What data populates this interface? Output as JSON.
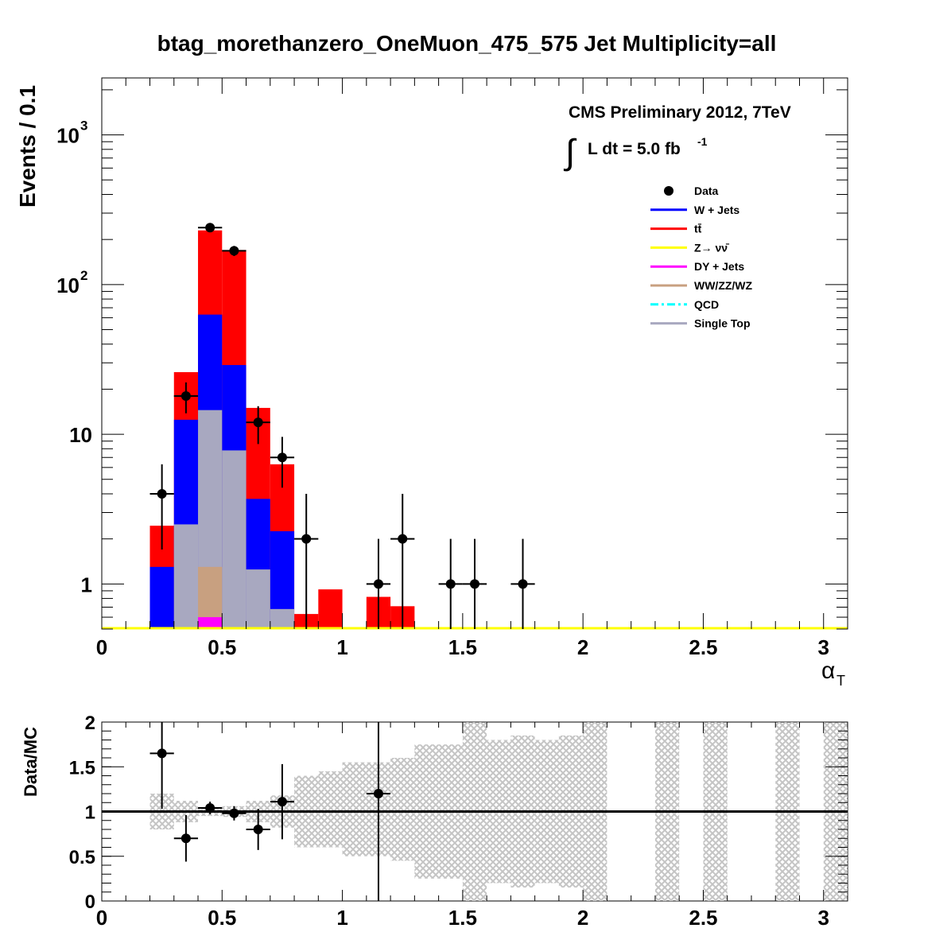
{
  "title": "btag_morethanzero_OneMuon_475_575    Jet Multiplicity=all",
  "cms_label": "CMS Preliminary 2012, 7TeV",
  "lumi_label": "L dt = 5.0 fb",
  "lumi_exp": "-1",
  "integral_symbol": "∫",
  "chart_data": [
    {
      "type": "bar",
      "stacked": true,
      "log_y": true,
      "ylabel": "Events / 0.1",
      "xlabel_main": "α",
      "xlabel_sub": "T",
      "xlim": [
        0,
        3.1
      ],
      "ylim": [
        0.5,
        2400
      ],
      "x_ticks": [
        "0",
        "0.5",
        "1",
        "1.5",
        "2",
        "2.5",
        "3"
      ],
      "y_ticks": [
        {
          "base": "1",
          "exp": ""
        },
        {
          "base": "10",
          "exp": ""
        },
        {
          "base": "10",
          "exp": "2"
        },
        {
          "base": "10",
          "exp": "3"
        }
      ],
      "bin_edges": [
        0.2,
        0.3,
        0.4,
        0.5,
        0.6,
        0.7,
        0.8,
        0.9,
        1.0,
        1.1,
        1.2,
        1.3
      ],
      "stack": [
        {
          "name": "Single Top",
          "color": "#a8a8c0",
          "values": [
            0,
            2.5,
            14.5,
            7.8,
            1.25,
            0.68,
            0,
            0,
            0,
            0,
            0
          ]
        },
        {
          "name": "W + Jets",
          "color": "#0000ff",
          "values": [
            1.3,
            12.5,
            63,
            29,
            3.7,
            2.25,
            0,
            0,
            0,
            0,
            0
          ]
        },
        {
          "name": "tt̄",
          "color": "#ff0000",
          "values": [
            2.45,
            26,
            230,
            170,
            15,
            6.3,
            0.63,
            0.92,
            0.51,
            0.82,
            0.71
          ]
        }
      ],
      "overlays": [
        {
          "name": "WW/ZZ/WZ",
          "color": "#c8a080",
          "bin_edges": [
            0.4,
            0.5
          ],
          "values": [
            1.3
          ]
        },
        {
          "name": "DY + Jets",
          "color": "#ff00ff",
          "bin_edges": [
            0.4,
            0.5
          ],
          "values": [
            0.6
          ]
        }
      ],
      "data_points": {
        "name": "Data",
        "x": [
          0.25,
          0.35,
          0.45,
          0.55,
          0.65,
          0.75,
          0.85,
          1.15,
          1.25,
          1.45,
          1.55,
          1.75
        ],
        "y": [
          4,
          18,
          240,
          168,
          12,
          7,
          2,
          1,
          2,
          1,
          1,
          1
        ],
        "err_lo": [
          2.3,
          4.2,
          15.5,
          13,
          3.4,
          2.6,
          1.5,
          0.5,
          1.5,
          0.5,
          0.5,
          0.5
        ],
        "err_hi": [
          2.3,
          4.2,
          15.5,
          13,
          3.4,
          2.6,
          2.0,
          1.0,
          2.0,
          1.0,
          1.0,
          1.0
        ]
      },
      "legend": [
        {
          "label": "Data",
          "style": "marker",
          "color": "#000000"
        },
        {
          "label": "W + Jets",
          "style": "line",
          "color": "#0000ff"
        },
        {
          "label": "tt̄",
          "style": "line",
          "color": "#ff0000"
        },
        {
          "label": "Z→ νν̄",
          "style": "line",
          "color": "#ffff00"
        },
        {
          "label": "DY + Jets",
          "style": "line",
          "color": "#ff00ff"
        },
        {
          "label": "WW/ZZ/WZ",
          "style": "line",
          "color": "#c8a080"
        },
        {
          "label": "QCD",
          "style": "dashdot",
          "color": "#00ffff"
        },
        {
          "label": "Single Top",
          "style": "line",
          "color": "#a8a8c0"
        }
      ],
      "legend_position": "top-right"
    },
    {
      "type": "scatter",
      "ylabel": "Data/MC",
      "xlim": [
        0,
        3.1
      ],
      "ylim": [
        0,
        2
      ],
      "x_ticks": [
        "0",
        "0.5",
        "1",
        "1.5",
        "2",
        "2.5",
        "3"
      ],
      "y_ticks": [
        "0",
        "0.5",
        "1",
        "1.5",
        "2"
      ],
      "reference_line": 1,
      "band_color": "#c8c8c8",
      "band": [
        {
          "x0": 0.2,
          "x1": 0.3,
          "lo": 0.8,
          "hi": 1.2
        },
        {
          "x0": 0.3,
          "x1": 0.4,
          "lo": 0.88,
          "hi": 1.12
        },
        {
          "x0": 0.4,
          "x1": 0.5,
          "lo": 0.95,
          "hi": 1.05
        },
        {
          "x0": 0.5,
          "x1": 0.6,
          "lo": 0.94,
          "hi": 1.06
        },
        {
          "x0": 0.6,
          "x1": 0.7,
          "lo": 0.88,
          "hi": 1.12
        },
        {
          "x0": 0.7,
          "x1": 0.8,
          "lo": 0.82,
          "hi": 1.18
        },
        {
          "x0": 0.8,
          "x1": 0.9,
          "lo": 0.6,
          "hi": 1.4
        },
        {
          "x0": 0.9,
          "x1": 1.0,
          "lo": 0.6,
          "hi": 1.45
        },
        {
          "x0": 1.0,
          "x1": 1.1,
          "lo": 0.5,
          "hi": 1.55
        },
        {
          "x0": 1.1,
          "x1": 1.2,
          "lo": 0.5,
          "hi": 1.55
        },
        {
          "x0": 1.2,
          "x1": 1.3,
          "lo": 0.45,
          "hi": 1.6
        },
        {
          "x0": 1.3,
          "x1": 1.4,
          "lo": 0.25,
          "hi": 1.75
        },
        {
          "x0": 1.4,
          "x1": 1.5,
          "lo": 0.25,
          "hi": 1.75
        },
        {
          "x0": 1.5,
          "x1": 1.6,
          "lo": 0,
          "hi": 2
        },
        {
          "x0": 1.6,
          "x1": 1.7,
          "lo": 0.2,
          "hi": 1.8
        },
        {
          "x0": 1.7,
          "x1": 1.8,
          "lo": 0.15,
          "hi": 1.85
        },
        {
          "x0": 1.8,
          "x1": 1.9,
          "lo": 0.2,
          "hi": 1.8
        },
        {
          "x0": 1.9,
          "x1": 2.0,
          "lo": 0.15,
          "hi": 1.85
        },
        {
          "x0": 2.0,
          "x1": 2.1,
          "lo": 0,
          "hi": 2
        },
        {
          "x0": 2.3,
          "x1": 2.4,
          "lo": 0,
          "hi": 2
        },
        {
          "x0": 2.5,
          "x1": 2.6,
          "lo": 0,
          "hi": 2
        },
        {
          "x0": 2.8,
          "x1": 2.9,
          "lo": 0,
          "hi": 2
        },
        {
          "x0": 3.0,
          "x1": 3.1,
          "lo": 0,
          "hi": 2
        }
      ],
      "points": {
        "x": [
          0.25,
          0.35,
          0.45,
          0.55,
          0.65,
          0.75,
          1.15
        ],
        "y": [
          1.65,
          0.7,
          1.04,
          0.98,
          0.8,
          1.11,
          1.2
        ],
        "err_lo": [
          0.62,
          0.26,
          0.07,
          0.08,
          0.23,
          0.42,
          1.2
        ],
        "err_hi": [
          0.62,
          0.26,
          0.07,
          0.08,
          0.23,
          0.42,
          1.2
        ]
      }
    }
  ]
}
